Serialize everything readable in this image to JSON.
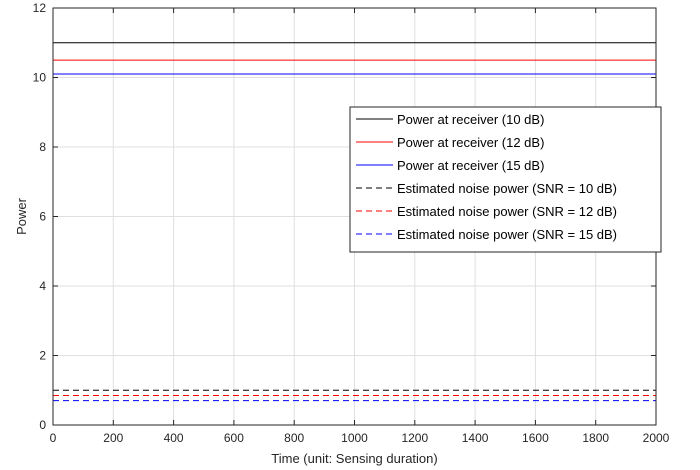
{
  "chart_data": {
    "type": "line",
    "xlabel": "Time (unit: Sensing duration)",
    "ylabel": "Power",
    "xlim": [
      0,
      2000
    ],
    "ylim": [
      0,
      12
    ],
    "xticks": [
      0,
      200,
      400,
      600,
      800,
      1000,
      1200,
      1400,
      1600,
      1800,
      2000
    ],
    "yticks": [
      0,
      2,
      4,
      6,
      8,
      10,
      12
    ],
    "xtick_labels": [
      "0",
      "200",
      "400",
      "600",
      "800",
      "1000",
      "1200",
      "1400",
      "1600",
      "1800",
      "2000"
    ],
    "ytick_labels": [
      "0",
      "2",
      "4",
      "6",
      "8",
      "10",
      "12"
    ],
    "grid": true,
    "legend_position": "right",
    "series": [
      {
        "name": "Power at receiver (10 dB)",
        "color": "#000000",
        "dash": "solid",
        "x": [
          0,
          2000
        ],
        "y": [
          11.0,
          11.0
        ]
      },
      {
        "name": "Power at receiver (12 dB)",
        "color": "#ff0000",
        "dash": "solid",
        "x": [
          0,
          2000
        ],
        "y": [
          10.5,
          10.5
        ]
      },
      {
        "name": "Power at receiver (15 dB)",
        "color": "#0000ff",
        "dash": "solid",
        "x": [
          0,
          2000
        ],
        "y": [
          10.1,
          10.1
        ]
      },
      {
        "name": "Estimated noise power (SNR = 10 dB)",
        "color": "#000000",
        "dash": "dashed",
        "x": [
          0,
          2000
        ],
        "y": [
          1.0,
          1.0
        ]
      },
      {
        "name": "Estimated noise power (SNR = 12 dB)",
        "color": "#ff0000",
        "dash": "dashed",
        "x": [
          0,
          2000
        ],
        "y": [
          0.85,
          0.85
        ]
      },
      {
        "name": "Estimated noise power (SNR = 15 dB)",
        "color": "#0000ff",
        "dash": "dashed",
        "x": [
          0,
          2000
        ],
        "y": [
          0.7,
          0.7
        ]
      }
    ]
  }
}
